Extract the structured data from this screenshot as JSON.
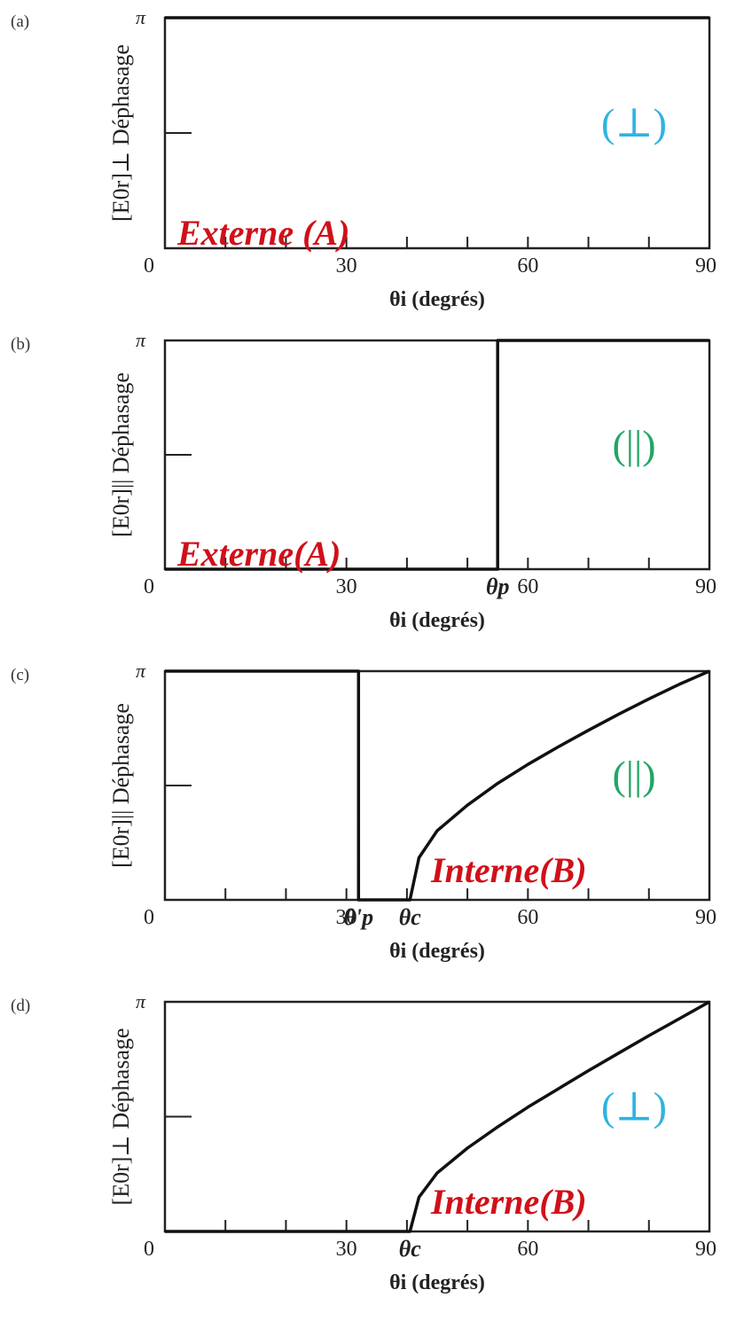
{
  "chart_data": [
    {
      "type": "line",
      "panel": "(a)",
      "ylabel": "[E0r]⊥ Déphasage",
      "xlabel": "θi (degrés)",
      "xlim": [
        0,
        90
      ],
      "ylim": [
        0,
        3.1416
      ],
      "x_ticks": [
        "0",
        "30",
        "60",
        "90"
      ],
      "y_top_label": "π",
      "annotation": "Externe (A)",
      "polarization": "(⊥)",
      "series": [
        {
          "x": [
            0,
            90
          ],
          "y": [
            3.1416,
            3.1416
          ]
        }
      ]
    },
    {
      "type": "line",
      "panel": "(b)",
      "ylabel": "[E0r]|| Déphasage",
      "xlabel": "θi (degrés)",
      "xlim": [
        0,
        90
      ],
      "ylim": [
        0,
        3.1416
      ],
      "x_ticks": [
        "0",
        "30",
        "60",
        "90"
      ],
      "y_top_label": "π",
      "annotation": "Externe(A)",
      "polarization": "(||)",
      "markers": [
        {
          "label": "θp",
          "x": 55
        }
      ],
      "series": [
        {
          "x": [
            0,
            55,
            55,
            90
          ],
          "y": [
            0,
            0,
            3.1416,
            3.1416
          ]
        }
      ]
    },
    {
      "type": "line",
      "panel": "(c)",
      "ylabel": "[E0r]|| Déphasage",
      "xlabel": "θi (degrés)",
      "xlim": [
        0,
        90
      ],
      "ylim": [
        0,
        3.1416
      ],
      "x_ticks": [
        "0",
        "30",
        "60",
        "90"
      ],
      "y_top_label": "π",
      "annotation": "Interne(B)",
      "polarization": "(||)",
      "markers": [
        {
          "label": "θ'p",
          "x": 32
        },
        {
          "label": "θc",
          "x": 40.5
        }
      ],
      "series": [
        {
          "x": [
            0,
            32,
            32,
            40.5,
            42,
            45,
            50,
            55,
            60,
            65,
            70,
            75,
            80,
            85,
            90
          ],
          "y": [
            3.1416,
            3.1416,
            0,
            0,
            0.58,
            0.95,
            1.3,
            1.6,
            1.86,
            2.1,
            2.33,
            2.55,
            2.76,
            2.96,
            3.1416
          ]
        }
      ]
    },
    {
      "type": "line",
      "panel": "(d)",
      "ylabel": "[E0r]⊥ Déphasage",
      "xlabel": "θi (degrés)",
      "xlim": [
        0,
        90
      ],
      "ylim": [
        0,
        3.1416
      ],
      "x_ticks": [
        "0",
        "30",
        "60",
        "90"
      ],
      "y_top_label": "π",
      "annotation": "Interne(B)",
      "polarization": "(⊥)",
      "markers": [
        {
          "label": "θc",
          "x": 40.5
        }
      ],
      "series": [
        {
          "x": [
            0,
            40.5,
            42,
            45,
            50,
            55,
            60,
            65,
            70,
            75,
            80,
            85,
            90
          ],
          "y": [
            0,
            0,
            0.47,
            0.8,
            1.14,
            1.43,
            1.7,
            1.95,
            2.2,
            2.44,
            2.68,
            2.91,
            3.1416
          ]
        }
      ]
    }
  ]
}
